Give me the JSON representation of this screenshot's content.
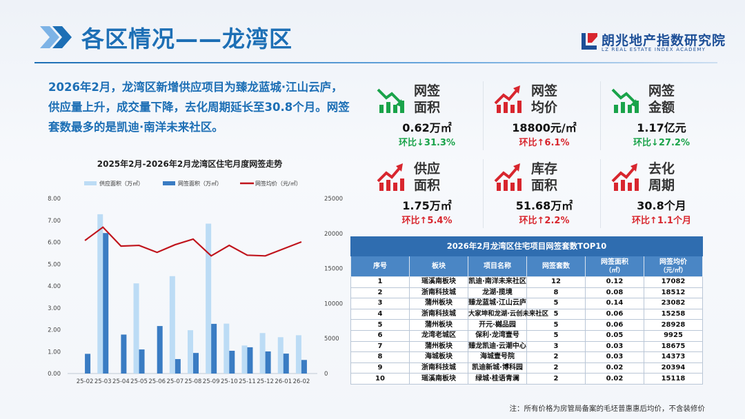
{
  "page": {
    "title": "各区情况——龙湾区",
    "logo_cn": "朗兆地产指数研究院",
    "logo_en": "LZ REAL ESTATE INDEX ACADEMY",
    "intro": "2026年2月，龙湾区新增供应项目为臻龙蓝城·江山云庐，供应量上升，成交量下降，去化周期延长至30.8个月。网签套数最多的是凯迪·南洋未来社区。",
    "note": "注：所有价格为房管局备案的毛坯普惠惠后均价，不含装修价"
  },
  "colors": {
    "accent": "#1d6fb5",
    "supply_bar": "#bcdcf5",
    "sign_bar": "#3a7cc3",
    "price_line": "#c0141c",
    "down": "#1aa34a",
    "up": "#d8262e"
  },
  "kpis": [
    {
      "label1": "网签",
      "label2": "面积",
      "value": "0.62万㎡",
      "change": "环比↓31.3%",
      "direction": "down",
      "icon": "trend-down-icon"
    },
    {
      "label1": "网签",
      "label2": "均价",
      "value": "18800元/㎡",
      "change": "环比↑6.1%",
      "direction": "up",
      "icon": "trend-up-icon"
    },
    {
      "label1": "网签",
      "label2": "金额",
      "value": "1.17亿元",
      "change": "环比↓27.2%",
      "direction": "down",
      "icon": "trend-down-icon"
    },
    {
      "label1": "供应",
      "label2": "面积",
      "value": "1.75万㎡",
      "change": "环比↑5.4%",
      "direction": "up",
      "icon": "trend-up-icon"
    },
    {
      "label1": "库存",
      "label2": "面积",
      "value": "51.68万㎡",
      "change": "环比↑2.2%",
      "direction": "up",
      "icon": "trend-up-icon"
    },
    {
      "label1": "去化",
      "label2": "周期",
      "value": "30.8个月",
      "change": "环比↑1.1个月",
      "direction": "up",
      "icon": "trend-up-icon"
    }
  ],
  "table": {
    "caption": "2026年2月龙湾区住宅项目网签套数TOP10",
    "headers": [
      "序号",
      "板块",
      "项目名称",
      "网签套数",
      "网签面积\n（㎡）",
      "网签均价\n（元/㎡）"
    ],
    "rows": [
      [
        "1",
        "瑶溪南板块",
        "凯迪·南洋未来社区",
        "12",
        "0.12",
        "17082"
      ],
      [
        "2",
        "浙南科技城",
        "龙湖·揽境",
        "8",
        "0.08",
        "18512"
      ],
      [
        "3",
        "蒲州板块",
        "臻龙蓝城·江山云庐",
        "5",
        "0.14",
        "23082"
      ],
      [
        "4",
        "浙南科技城",
        "大家坤和龙湖·云创未来社区",
        "5",
        "0.06",
        "15258"
      ],
      [
        "5",
        "蒲州板块",
        "开元·樾品园",
        "5",
        "0.06",
        "28928"
      ],
      [
        "6",
        "龙湾老城区",
        "保利·龙湾壹号",
        "5",
        "0.05",
        "9925"
      ],
      [
        "7",
        "蒲州板块",
        "臻龙凯迪·云潮中心",
        "3",
        "0.03",
        "18675"
      ],
      [
        "8",
        "海城板块",
        "海城壹号院",
        "2",
        "0.03",
        "14373"
      ],
      [
        "9",
        "浙南科技城",
        "凯迪新城·博科园",
        "2",
        "0.02",
        "20394"
      ],
      [
        "10",
        "瑶溪南板块",
        "绿城·桂语青澜",
        "2",
        "0.02",
        "15118"
      ]
    ]
  },
  "chart_data": {
    "type": "bar",
    "title": "2025年2月-2026年2月龙湾区住宅月度网签走势",
    "categories": [
      "25-02",
      "25-03",
      "25-04",
      "25-05",
      "25-06",
      "25-07",
      "25-08",
      "25-09",
      "25-10",
      "25-11",
      "25-12",
      "26-01",
      "26-02"
    ],
    "series": [
      {
        "name": "供应面积（万㎡）",
        "type": "bar",
        "axis": "left",
        "values": [
          0,
          7.28,
          0,
          4.12,
          0,
          4.45,
          1.98,
          6.85,
          2.28,
          1.28,
          1.85,
          1.66,
          1.75
        ]
      },
      {
        "name": "网签面积（万㎡）",
        "type": "bar",
        "axis": "left",
        "values": [
          0.9,
          6.42,
          1.78,
          1.1,
          2.17,
          0.66,
          0.94,
          2.27,
          1.04,
          1.2,
          1.01,
          0.91,
          0.62
        ]
      },
      {
        "name": "网签均价（元/㎡）",
        "type": "line",
        "axis": "right",
        "values": [
          19000,
          20900,
          18200,
          18300,
          17300,
          18400,
          19200,
          16800,
          18300,
          16900,
          16800,
          17800,
          18800
        ]
      }
    ],
    "y_left": {
      "min": 0,
      "max": 8,
      "step": 1,
      "ticks": [
        "0.00",
        "1.00",
        "2.00",
        "3.00",
        "4.00",
        "5.00",
        "6.00",
        "7.00",
        "8.00"
      ]
    },
    "y_right": {
      "min": 0,
      "max": 25000,
      "step": 5000,
      "ticks": [
        "0",
        "5000",
        "10000",
        "15000",
        "20000",
        "25000"
      ]
    },
    "legend_position": "top",
    "grid": false
  }
}
